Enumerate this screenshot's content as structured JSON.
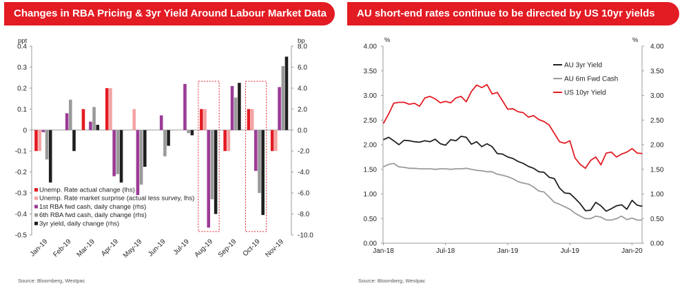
{
  "left": {
    "title": "Changes in RBA Pricing & 3yr Yield Around Labour Market Data",
    "source": "Source: Bloomberg, Westpac"
  },
  "right": {
    "title": "AU short-end rates continue to be directed by US 10yr yields",
    "source": "Source: Bloomberg, Westpac"
  },
  "colors": {
    "red": "#e31b23",
    "pink": "#f4a3a3",
    "purple": "#9b3b96",
    "grey": "#9a9a9a",
    "black": "#1f1f1f"
  },
  "chart_data": [
    {
      "type": "bar",
      "categories": [
        "Jan-19",
        "Feb-19",
        "Mar-19",
        "Apr-19",
        "May-19",
        "Jun-19",
        "Jul-19",
        "Aug-19",
        "Sep-19",
        "Oct-19",
        "Nov-19"
      ],
      "lhs_unit": "ppt",
      "rhs_unit": "bp",
      "ylim_lhs": [
        -0.5,
        0.4
      ],
      "ylim_rhs": [
        -10.0,
        8.0
      ],
      "yticks_lhs": [
        "0.4",
        "0.3",
        "0.2",
        "0.1",
        "0",
        "-0.1",
        "-0.2",
        "-0.3",
        "-0.4",
        "-0.5"
      ],
      "yticks_rhs": [
        "8.0",
        "6.0",
        "4.0",
        "2.0",
        "0.0",
        "-2.0",
        "-4.0",
        "-6.0",
        "-8.0",
        "-10.0"
      ],
      "series": [
        {
          "name": "Unemp. Rate actual change (lhs)",
          "axis": "lhs",
          "color": "#e31b23",
          "values": [
            -0.1,
            null,
            0.1,
            0.2,
            null,
            null,
            null,
            0.1,
            -0.1,
            0.1,
            -0.1
          ]
        },
        {
          "name": "Unemp. Rate market surprise (actual less survey, lhs)",
          "axis": "lhs",
          "color": "#f4a3a3",
          "values": [
            -0.1,
            null,
            null,
            0.2,
            0.1,
            null,
            null,
            0.1,
            -0.1,
            0.1,
            -0.1
          ]
        },
        {
          "name": "1st RBA fwd cash, daily change (rhs)",
          "axis": "rhs",
          "color": "#9b3b96",
          "values": [
            -0.2,
            1.6,
            0.8,
            -4.4,
            -6.2,
            1.4,
            4.4,
            -9.3,
            4.2,
            -3.9,
            4.1
          ]
        },
        {
          "name": "6th RBA fwd cash, daily change (rhs)",
          "axis": "rhs",
          "color": "#9a9a9a",
          "values": [
            -2.8,
            2.9,
            2.2,
            -4.2,
            -5.2,
            -2.5,
            -0.3,
            -6.6,
            3.1,
            -6.0,
            6.1
          ]
        },
        {
          "name": "3yr yield, daily change (rhs)",
          "axis": "rhs",
          "color": "#1f1f1f",
          "values": [
            -5.0,
            -2.0,
            0.5,
            -5.0,
            -3.5,
            -1.5,
            -0.5,
            -8.0,
            4.5,
            -8.1,
            7.0
          ]
        }
      ],
      "highlight_categories": [
        "Aug-19",
        "Oct-19"
      ]
    },
    {
      "type": "line",
      "ylabel_left": "%",
      "ylabel_right": "%",
      "ylim": [
        0.0,
        4.0
      ],
      "yticks": [
        "4.00",
        "3.50",
        "3.00",
        "2.50",
        "2.00",
        "1.50",
        "1.00",
        "0.50",
        "0.00"
      ],
      "xticks": [
        "Jan-18",
        "Jul-18",
        "Jan-19",
        "Jul-19",
        "Jan-20"
      ],
      "x_range": [
        "2018-01-01",
        "2020-01-31"
      ],
      "series": [
        {
          "name": "AU 3yr Yield",
          "color": "#1f1f1f",
          "x": [
            0,
            0.5,
            1,
            1.5,
            2,
            2.5,
            3,
            3.5,
            4,
            4.5,
            5,
            5.5,
            6,
            6.5,
            7,
            7.5,
            8,
            8.5,
            9,
            9.5,
            10,
            10.5,
            11,
            11.5,
            12,
            12.5,
            13,
            13.5,
            14,
            14.5,
            15,
            15.5,
            16,
            16.5,
            17,
            17.5,
            18,
            18.5,
            19,
            19.5,
            20,
            20.5,
            21,
            21.5,
            22,
            22.5,
            23,
            23.5,
            24,
            24.5,
            25
          ],
          "values": [
            2.1,
            2.15,
            2.08,
            2.0,
            2.09,
            2.08,
            2.06,
            2.05,
            2.08,
            2.06,
            2.11,
            2.02,
            1.99,
            2.1,
            2.08,
            2.17,
            2.15,
            2.01,
            2.06,
            1.96,
            2.02,
            1.96,
            1.82,
            1.81,
            1.75,
            1.72,
            1.66,
            1.62,
            1.56,
            1.52,
            1.45,
            1.44,
            1.34,
            1.31,
            1.12,
            1.02,
            1.01,
            0.91,
            0.8,
            0.66,
            0.67,
            0.83,
            0.76,
            0.65,
            0.7,
            0.76,
            0.78,
            0.69,
            0.87,
            0.77,
            0.75
          ]
        },
        {
          "name": "AU 6m Fwd Cash",
          "color": "#9a9a9a",
          "x": [
            0,
            0.5,
            1,
            1.5,
            2,
            2.5,
            3,
            3.5,
            4,
            4.5,
            5,
            5.5,
            6,
            6.5,
            7,
            7.5,
            8,
            8.5,
            9,
            9.5,
            10,
            10.5,
            11,
            11.5,
            12,
            12.5,
            13,
            13.5,
            14,
            14.5,
            15,
            15.5,
            16,
            16.5,
            17,
            17.5,
            18,
            18.5,
            19,
            19.5,
            20,
            20.5,
            21,
            21.5,
            22,
            22.5,
            23,
            23.5,
            24,
            24.5,
            25
          ],
          "values": [
            1.55,
            1.6,
            1.62,
            1.55,
            1.54,
            1.52,
            1.52,
            1.51,
            1.51,
            1.51,
            1.5,
            1.51,
            1.51,
            1.5,
            1.51,
            1.51,
            1.52,
            1.5,
            1.48,
            1.47,
            1.45,
            1.45,
            1.4,
            1.38,
            1.35,
            1.31,
            1.25,
            1.22,
            1.2,
            1.14,
            1.06,
            1.04,
            0.94,
            0.83,
            0.79,
            0.74,
            0.69,
            0.61,
            0.55,
            0.5,
            0.5,
            0.55,
            0.53,
            0.47,
            0.47,
            0.5,
            0.55,
            0.48,
            0.51,
            0.47,
            0.47
          ]
        },
        {
          "name": "US 10yr Yield",
          "color": "#e31b23",
          "x": [
            0,
            0.5,
            1,
            1.5,
            2,
            2.5,
            3,
            3.5,
            4,
            4.5,
            5,
            5.5,
            6,
            6.5,
            7,
            7.5,
            8,
            8.5,
            9,
            9.5,
            10,
            10.5,
            11,
            11.5,
            12,
            12.5,
            13,
            13.5,
            14,
            14.5,
            15,
            15.5,
            16,
            16.5,
            17,
            17.5,
            18,
            18.5,
            19,
            19.5,
            20,
            20.5,
            21,
            21.5,
            22,
            22.5,
            23,
            23.5,
            24,
            24.5,
            25
          ],
          "values": [
            2.43,
            2.62,
            2.84,
            2.86,
            2.86,
            2.82,
            2.84,
            2.78,
            2.95,
            2.98,
            2.93,
            2.85,
            2.88,
            2.85,
            2.95,
            2.98,
            2.87,
            3.08,
            3.21,
            3.16,
            3.22,
            3.03,
            3.06,
            2.89,
            2.72,
            2.73,
            2.67,
            2.65,
            2.56,
            2.59,
            2.51,
            2.47,
            2.4,
            2.23,
            2.06,
            2.03,
            2.08,
            1.73,
            1.6,
            1.52,
            1.68,
            1.75,
            1.59,
            1.83,
            1.85,
            1.75,
            1.81,
            1.85,
            1.92,
            1.83,
            1.82
          ]
        }
      ]
    }
  ]
}
